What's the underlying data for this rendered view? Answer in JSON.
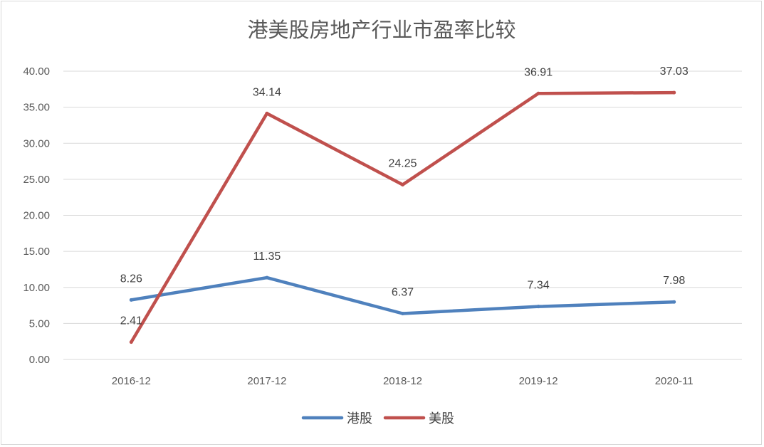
{
  "chart_data": {
    "type": "line",
    "title": "港美股房地产行业市盈率比较",
    "categories": [
      "2016-12",
      "2017-12",
      "2018-12",
      "2019-12",
      "2020-11"
    ],
    "yticks": [
      "0.00",
      "5.00",
      "10.00",
      "15.00",
      "20.00",
      "25.00",
      "30.00",
      "35.00",
      "40.00"
    ],
    "ylim": [
      0,
      40
    ],
    "grid": true,
    "legend_position": "bottom",
    "series": [
      {
        "name": "港股",
        "color": "#4f81bd",
        "values": [
          8.26,
          11.35,
          6.37,
          7.34,
          7.98
        ],
        "labels": [
          "8.26",
          "11.35",
          "6.37",
          "7.34",
          "7.98"
        ]
      },
      {
        "name": "美股",
        "color": "#c0504d",
        "values": [
          2.41,
          34.14,
          24.25,
          36.91,
          37.03
        ],
        "labels": [
          "2.41",
          "34.14",
          "24.25",
          "36.91",
          "37.03"
        ]
      }
    ]
  }
}
